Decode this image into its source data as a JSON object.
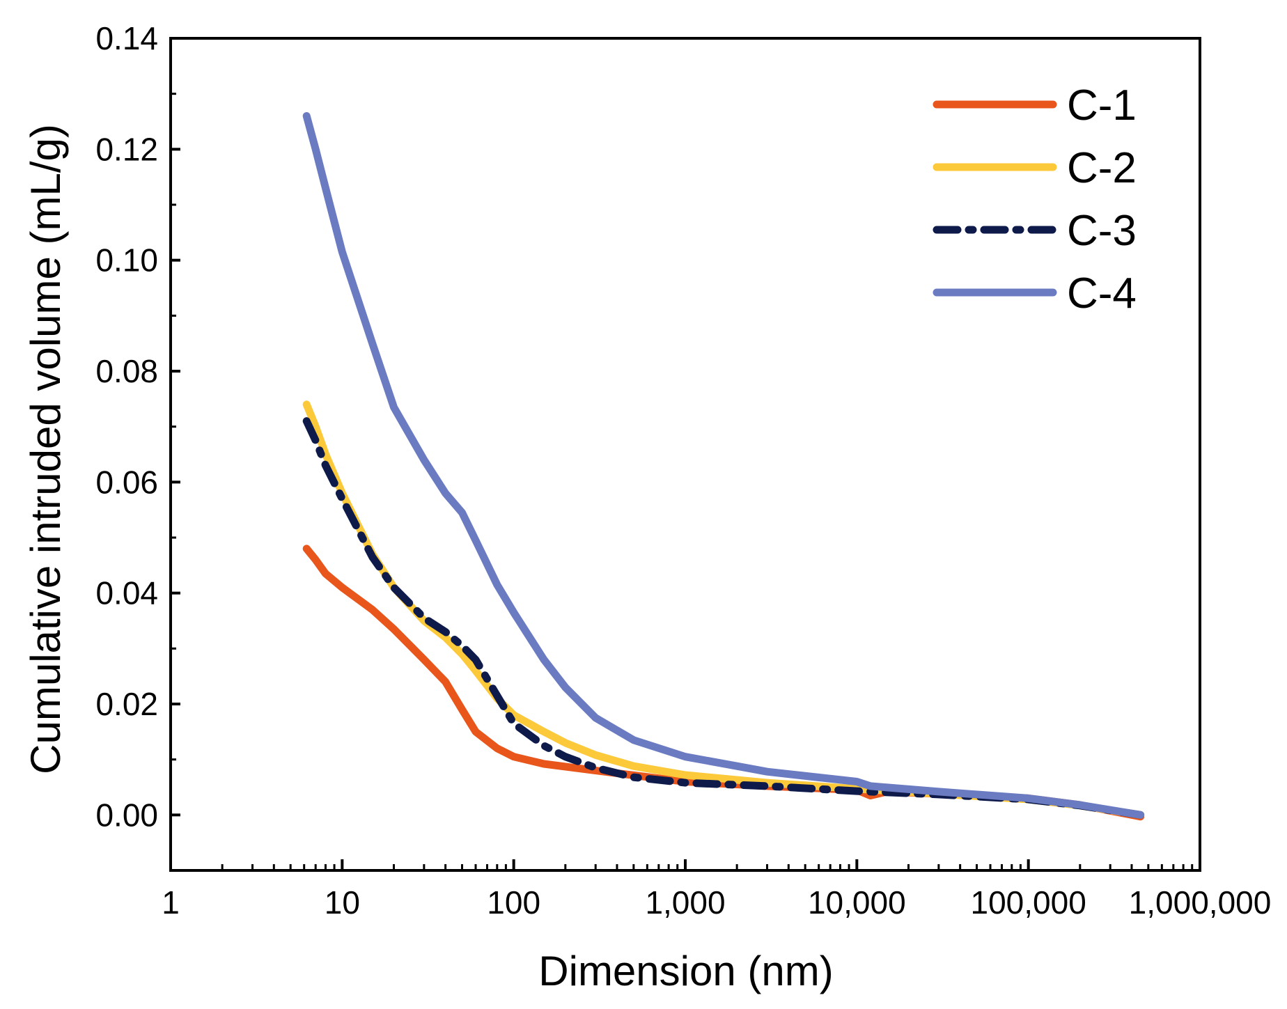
{
  "chart_data": {
    "type": "line",
    "title": "",
    "xlabel": "Dimension (nm)",
    "ylabel": "Cumulative intruded volume (mL/g)",
    "x_scale": "log",
    "xlim": [
      1,
      1000000
    ],
    "ylim": [
      -0.01,
      0.14
    ],
    "x_ticks": [
      {
        "value": 1,
        "label": "1"
      },
      {
        "value": 10,
        "label": "10"
      },
      {
        "value": 100,
        "label": "100"
      },
      {
        "value": 1000,
        "label": "1,000"
      },
      {
        "value": 10000,
        "label": "10,000"
      },
      {
        "value": 100000,
        "label": "100,000"
      },
      {
        "value": 1000000,
        "label": "1,000,000"
      }
    ],
    "y_ticks": [
      {
        "value": 0.0,
        "label": "0.00"
      },
      {
        "value": 0.02,
        "label": "0.02"
      },
      {
        "value": 0.04,
        "label": "0.04"
      },
      {
        "value": 0.06,
        "label": "0.06"
      },
      {
        "value": 0.08,
        "label": "0.08"
      },
      {
        "value": 0.1,
        "label": "0.10"
      },
      {
        "value": 0.12,
        "label": "0.12"
      },
      {
        "value": 0.14,
        "label": "0.14"
      }
    ],
    "grid": false,
    "legend_position": "top-right",
    "series": [
      {
        "name": "C-1",
        "color": "#e8561c",
        "style": "solid",
        "points": [
          [
            6.2,
            0.048
          ],
          [
            7,
            0.046
          ],
          [
            8,
            0.0435
          ],
          [
            10,
            0.041
          ],
          [
            15,
            0.037
          ],
          [
            20,
            0.0335
          ],
          [
            30,
            0.028
          ],
          [
            40,
            0.024
          ],
          [
            50,
            0.019
          ],
          [
            60,
            0.015
          ],
          [
            80,
            0.012
          ],
          [
            100,
            0.0105
          ],
          [
            150,
            0.0092
          ],
          [
            300,
            0.008
          ],
          [
            1000,
            0.006
          ],
          [
            3000,
            0.0052
          ],
          [
            10000,
            0.0045
          ],
          [
            12000,
            0.0035
          ],
          [
            15000,
            0.0042
          ],
          [
            30000,
            0.0038
          ],
          [
            100000,
            0.003
          ],
          [
            200000,
            0.0018
          ],
          [
            450000,
            -0.0003
          ]
        ]
      },
      {
        "name": "C-2",
        "color": "#fcc93a",
        "style": "solid",
        "points": [
          [
            6.2,
            0.074
          ],
          [
            7,
            0.07
          ],
          [
            8,
            0.065
          ],
          [
            10,
            0.058
          ],
          [
            15,
            0.047
          ],
          [
            20,
            0.041
          ],
          [
            30,
            0.035
          ],
          [
            40,
            0.032
          ],
          [
            50,
            0.029
          ],
          [
            60,
            0.026
          ],
          [
            80,
            0.021
          ],
          [
            100,
            0.018
          ],
          [
            150,
            0.015
          ],
          [
            200,
            0.013
          ],
          [
            300,
            0.0108
          ],
          [
            500,
            0.0088
          ],
          [
            1000,
            0.0072
          ],
          [
            3000,
            0.0058
          ],
          [
            10000,
            0.0047
          ],
          [
            30000,
            0.0038
          ],
          [
            100000,
            0.0028
          ],
          [
            200000,
            0.0017
          ],
          [
            450000,
            0.0
          ]
        ]
      },
      {
        "name": "C-3",
        "color": "#0d1a4a",
        "style": "dashdot",
        "points": [
          [
            6.2,
            0.071
          ],
          [
            7,
            0.0675
          ],
          [
            8,
            0.063
          ],
          [
            10,
            0.057
          ],
          [
            15,
            0.0465
          ],
          [
            20,
            0.041
          ],
          [
            30,
            0.0355
          ],
          [
            40,
            0.033
          ],
          [
            50,
            0.0305
          ],
          [
            60,
            0.028
          ],
          [
            80,
            0.0215
          ],
          [
            100,
            0.0165
          ],
          [
            150,
            0.0125
          ],
          [
            200,
            0.0105
          ],
          [
            300,
            0.0085
          ],
          [
            500,
            0.0068
          ],
          [
            1000,
            0.0058
          ],
          [
            3000,
            0.0052
          ],
          [
            10000,
            0.0043
          ],
          [
            30000,
            0.0037
          ],
          [
            100000,
            0.0028
          ],
          [
            200000,
            0.0017
          ],
          [
            450000,
            0.0
          ]
        ]
      },
      {
        "name": "C-4",
        "color": "#6a7bc2",
        "style": "solid",
        "points": [
          [
            6.2,
            0.126
          ],
          [
            7,
            0.12
          ],
          [
            8,
            0.113
          ],
          [
            10,
            0.1015
          ],
          [
            15,
            0.085
          ],
          [
            20,
            0.0735
          ],
          [
            30,
            0.064
          ],
          [
            40,
            0.058
          ],
          [
            50,
            0.0545
          ],
          [
            60,
            0.0495
          ],
          [
            80,
            0.0415
          ],
          [
            100,
            0.0365
          ],
          [
            150,
            0.028
          ],
          [
            200,
            0.023
          ],
          [
            300,
            0.0175
          ],
          [
            500,
            0.0135
          ],
          [
            1000,
            0.0105
          ],
          [
            2000,
            0.0088
          ],
          [
            3000,
            0.0078
          ],
          [
            10000,
            0.006
          ],
          [
            12000,
            0.0052
          ],
          [
            30000,
            0.0042
          ],
          [
            100000,
            0.003
          ],
          [
            200000,
            0.0018
          ],
          [
            450000,
            0.0
          ]
        ]
      }
    ]
  }
}
